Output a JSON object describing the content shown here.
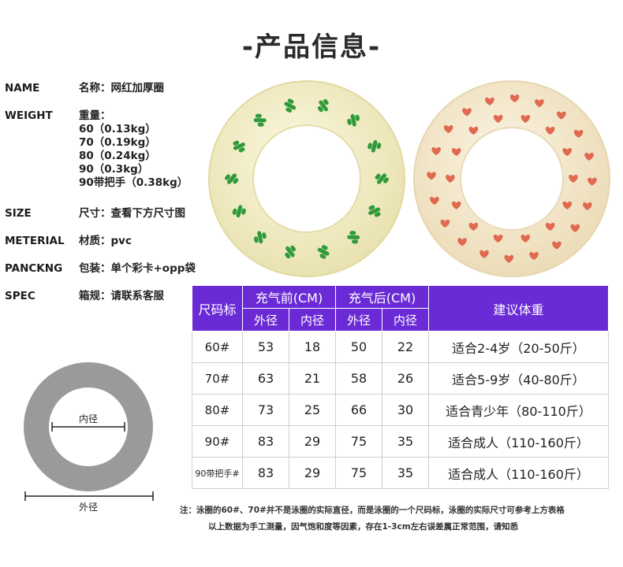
{
  "page_title": "-产品信息-",
  "specs": [
    {
      "key": "NAME",
      "value_lines": [
        "名称：网红加厚圈"
      ]
    },
    {
      "key": "WEIGHT",
      "value_lines": [
        "重量：",
        "60（0.13kg）",
        "70（0.19kg）",
        "80（0.24kg）",
        "90（0.3kg）",
        "90带把手（0.38kg）"
      ]
    },
    {
      "key": "SIZE",
      "value_lines": [
        "尺寸：查看下方尺寸图"
      ]
    },
    {
      "key": "METERIAL",
      "value_lines": [
        "材质：pvc"
      ]
    },
    {
      "key": "PANCKNG",
      "value_lines": [
        "包装：单个彩卡+opp袋"
      ]
    },
    {
      "key": "SPEC",
      "value_lines": [
        "箱规：请联系客服"
      ]
    }
  ],
  "products": [
    {
      "pattern": "cactus",
      "color": "#f4efc8",
      "motif_color": "#2f9a3a"
    },
    {
      "pattern": "hearts",
      "color": "#f6ecd0",
      "motif_color": "#e0694f"
    }
  ],
  "diagram": {
    "inner_label": "内径",
    "outer_label": "外径",
    "ring_color": "#9a9a9a"
  },
  "table": {
    "header": {
      "size_col": "尺码标",
      "before_group": "充气前(CM)",
      "after_group": "充气后(CM)",
      "weight_col": "建议体重",
      "outer": "外径",
      "inner": "内径"
    },
    "header_color": "#6a2bd6",
    "rows": [
      {
        "size": "60#",
        "before_outer": "53",
        "before_inner": "18",
        "after_outer": "50",
        "after_inner": "22",
        "weight": "适合2-4岁（20-50斤）"
      },
      {
        "size": "70#",
        "before_outer": "63",
        "before_inner": "21",
        "after_outer": "58",
        "after_inner": "26",
        "weight": "适合5-9岁（40-80斤）"
      },
      {
        "size": "80#",
        "before_outer": "73",
        "before_inner": "25",
        "after_outer": "66",
        "after_inner": "30",
        "weight": "适合青少年（80-110斤）"
      },
      {
        "size": "90#",
        "before_outer": "83",
        "before_inner": "29",
        "after_outer": "75",
        "after_inner": "35",
        "weight": "适合成人（110-160斤）"
      },
      {
        "size": "90带把手#",
        "before_outer": "83",
        "before_inner": "29",
        "after_outer": "75",
        "after_inner": "35",
        "weight": "适合成人（110-160斤）"
      }
    ]
  },
  "notes": [
    "注：泳圈的60#、70#并不是泳圈的实际直径，而是泳圈的一个尺码标，泳圈的实际尺寸可参考上方表格",
    "以上数据为手工测量，因气饱和度等因素，存在1-3cm左右误差属正常范围，请知悉"
  ]
}
